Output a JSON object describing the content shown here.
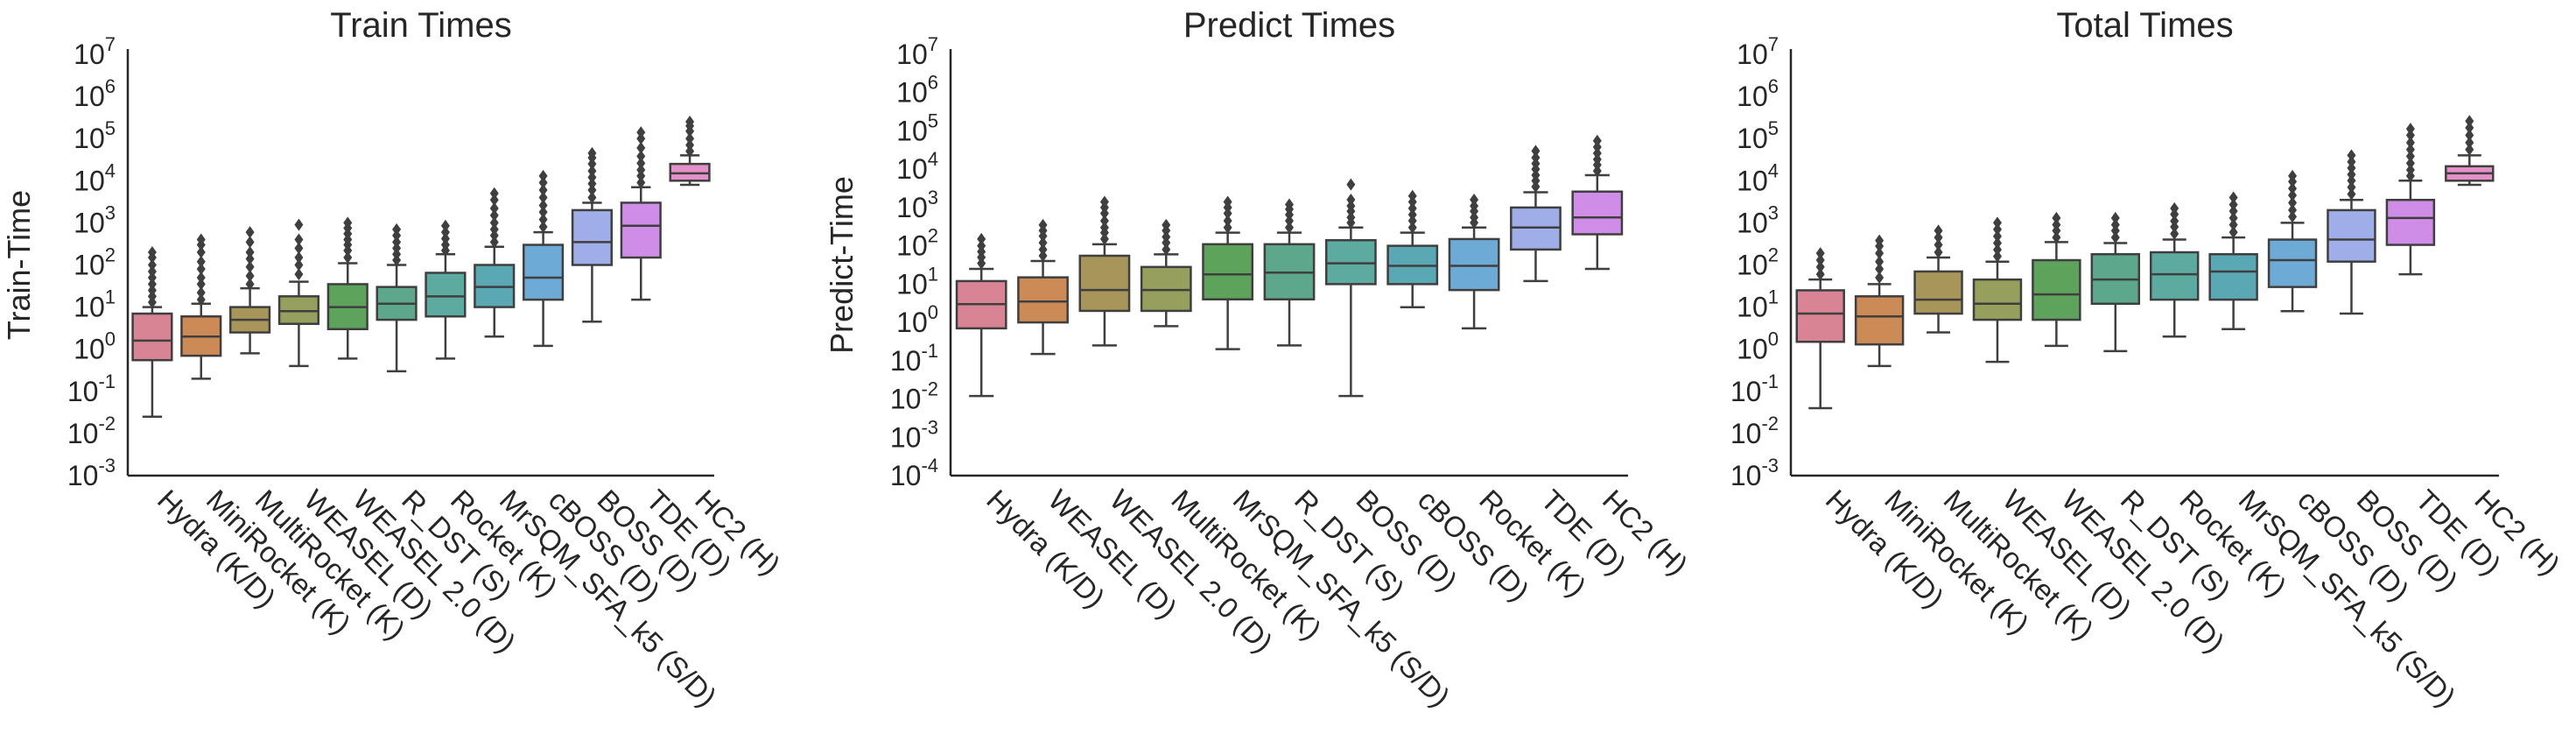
{
  "palette": [
    "#d98494",
    "#cc8a56",
    "#a8955a",
    "#96a05c",
    "#5ea35c",
    "#5da88c",
    "#5daaa0",
    "#5aa8b4",
    "#6daad6",
    "#9faee8",
    "#d08de8",
    "#e590c8"
  ],
  "chart_data": [
    {
      "type": "box",
      "title": "Train Times",
      "ylabel": "Train-Time",
      "yscale": "log",
      "ylim_exp": [
        -3,
        7
      ],
      "yticks": [
        {
          "base": "10",
          "exp": "-3"
        },
        {
          "base": "10",
          "exp": "-2"
        },
        {
          "base": "10",
          "exp": "-1"
        },
        {
          "base": "10",
          "exp": "0"
        },
        {
          "base": "10",
          "exp": "1"
        },
        {
          "base": "10",
          "exp": "2"
        },
        {
          "base": "10",
          "exp": "3"
        },
        {
          "base": "10",
          "exp": "4"
        },
        {
          "base": "10",
          "exp": "5"
        },
        {
          "base": "10",
          "exp": "6"
        },
        {
          "base": "10",
          "exp": "7"
        }
      ],
      "categories": [
        "Hydra (K/D)",
        "MiniRocket (K)",
        "MultiRocket (K)",
        "WEASEL (D)",
        "WEASEL 2.0 (D)",
        "R_DST (S)",
        "Rocket (K)",
        "MrSQM_SFA_k5 (S/D)",
        "cBOSS (D)",
        "BOSS (D)",
        "TDE (D)",
        "HC2 (H)"
      ],
      "boxes": [
        {
          "whislo": 0.025,
          "q1": 0.55,
          "med": 1.6,
          "q3": 7,
          "whishi": 10,
          "fliers": [
            13,
            18,
            25,
            35,
            50,
            70,
            100,
            150,
            200
          ]
        },
        {
          "whislo": 0.2,
          "q1": 0.7,
          "med": 2,
          "q3": 6,
          "whishi": 12,
          "fliers": [
            15,
            22,
            35,
            50,
            80,
            120,
            200,
            300,
            400
          ]
        },
        {
          "whislo": 0.8,
          "q1": 2.5,
          "med": 5,
          "q3": 10,
          "whishi": 28,
          "fliers": [
            35,
            55,
            90,
            140,
            200,
            350,
            600
          ]
        },
        {
          "whislo": 0.4,
          "q1": 4,
          "med": 8,
          "q3": 18,
          "whishi": 40,
          "fliers": [
            60,
            100,
            150,
            250,
            400,
            900
          ]
        },
        {
          "whislo": 0.6,
          "q1": 3,
          "med": 10,
          "q3": 35,
          "whishi": 110,
          "fliers": [
            150,
            220,
            300,
            400,
            550,
            750,
            1000
          ]
        },
        {
          "whislo": 0.3,
          "q1": 5,
          "med": 12,
          "q3": 30,
          "whishi": 100,
          "fliers": [
            130,
            180,
            250,
            350,
            500,
            700
          ]
        },
        {
          "whislo": 0.6,
          "q1": 6,
          "med": 18,
          "q3": 65,
          "whishi": 180,
          "fliers": [
            220,
            300,
            420,
            600,
            850
          ]
        },
        {
          "whislo": 2,
          "q1": 10,
          "med": 30,
          "q3": 100,
          "whishi": 270,
          "fliers": [
            350,
            500,
            700,
            1000,
            1500,
            2200,
            3500,
            5000
          ]
        },
        {
          "whislo": 1.2,
          "q1": 15,
          "med": 50,
          "q3": 300,
          "whishi": 600,
          "fliers": [
            800,
            1200,
            1800,
            2600,
            4000,
            6000,
            9000,
            13000
          ]
        },
        {
          "whislo": 4.5,
          "q1": 100,
          "med": 350,
          "q3": 2000,
          "whishi": 3000,
          "fliers": [
            4000,
            6000,
            8500,
            12000,
            17000,
            25000,
            35000,
            45000
          ]
        },
        {
          "whislo": 15,
          "q1": 150,
          "med": 850,
          "q3": 3000,
          "whishi": 7000,
          "fliers": [
            9000,
            13000,
            18000,
            26000,
            38000,
            60000,
            100000,
            140000
          ]
        },
        {
          "whislo": 8000,
          "q1": 10000,
          "med": 15000,
          "q3": 25000,
          "whishi": 40000,
          "fliers": [
            50000,
            70000,
            100000,
            150000,
            200000,
            250000
          ]
        }
      ]
    },
    {
      "type": "box",
      "title": "Predict Times",
      "ylabel": "Predict-Time",
      "yscale": "log",
      "ylim_exp": [
        -4,
        7
      ],
      "yticks": [
        {
          "base": "10",
          "exp": "-4"
        },
        {
          "base": "10",
          "exp": "-3"
        },
        {
          "base": "10",
          "exp": "-2"
        },
        {
          "base": "10",
          "exp": "-1"
        },
        {
          "base": "10",
          "exp": "0"
        },
        {
          "base": "10",
          "exp": "1"
        },
        {
          "base": "10",
          "exp": "2"
        },
        {
          "base": "10",
          "exp": "3"
        },
        {
          "base": "10",
          "exp": "4"
        },
        {
          "base": "10",
          "exp": "5"
        },
        {
          "base": "10",
          "exp": "6"
        },
        {
          "base": "10",
          "exp": "7"
        }
      ],
      "categories": [
        "Hydra (K/D)",
        "WEASEL (D)",
        "WEASEL 2.0 (D)",
        "MultiRocket (K)",
        "MrSQM_SFA_k5 (S/D)",
        "R_DST (S)",
        "BOSS (D)",
        "cBOSS (D)",
        "Rocket (K)",
        "TDE (D)",
        "HC2 (H)"
      ],
      "boxes": [
        {
          "whislo": 0.012,
          "q1": 0.7,
          "med": 3,
          "q3": 12,
          "whishi": 25,
          "fliers": [
            35,
            50,
            70,
            100,
            150
          ]
        },
        {
          "whislo": 0.15,
          "q1": 1,
          "med": 3.5,
          "q3": 15,
          "whishi": 40,
          "fliers": [
            55,
            80,
            120,
            180,
            250,
            350
          ]
        },
        {
          "whislo": 0.25,
          "q1": 2,
          "med": 7,
          "q3": 55,
          "whishi": 110,
          "fliers": [
            150,
            220,
            300,
            450,
            700,
            1000,
            1400
          ]
        },
        {
          "whislo": 0.8,
          "q1": 2,
          "med": 7,
          "q3": 28,
          "whishi": 60,
          "fliers": [
            80,
            120,
            170,
            250,
            350
          ]
        },
        {
          "whislo": 0.2,
          "q1": 4,
          "med": 18,
          "q3": 110,
          "whishi": 220,
          "fliers": [
            300,
            450,
            700,
            1000,
            1400
          ]
        },
        {
          "whislo": 0.25,
          "q1": 4,
          "med": 20,
          "q3": 110,
          "whishi": 220,
          "fliers": [
            300,
            450,
            650,
            900,
            1200
          ]
        },
        {
          "whislo": 0.012,
          "q1": 10,
          "med": 35,
          "q3": 140,
          "whishi": 300,
          "fliers": [
            400,
            550,
            800,
            1100,
            1600,
            4000
          ]
        },
        {
          "whislo": 2.5,
          "q1": 10,
          "med": 30,
          "q3": 100,
          "whishi": 220,
          "fliers": [
            300,
            450,
            650,
            950,
            1400,
            2000
          ]
        },
        {
          "whislo": 0.7,
          "q1": 7,
          "med": 30,
          "q3": 150,
          "whishi": 300,
          "fliers": [
            400,
            550,
            800,
            1100,
            1600
          ]
        },
        {
          "whislo": 12,
          "q1": 80,
          "med": 300,
          "q3": 1000,
          "whishi": 2500,
          "fliers": [
            3500,
            5000,
            7000,
            10000,
            14000,
            20000,
            30000
          ]
        },
        {
          "whislo": 25,
          "q1": 200,
          "med": 550,
          "q3": 2600,
          "whishi": 7000,
          "fliers": [
            9000,
            13000,
            18000,
            26000,
            38000,
            55000
          ]
        }
      ]
    },
    {
      "type": "box",
      "title": "Total Times",
      "ylabel": "",
      "yscale": "log",
      "ylim_exp": [
        -3,
        7
      ],
      "yticks": [
        {
          "base": "10",
          "exp": "-3"
        },
        {
          "base": "10",
          "exp": "-2"
        },
        {
          "base": "10",
          "exp": "-1"
        },
        {
          "base": "10",
          "exp": "0"
        },
        {
          "base": "10",
          "exp": "1"
        },
        {
          "base": "10",
          "exp": "2"
        },
        {
          "base": "10",
          "exp": "3"
        },
        {
          "base": "10",
          "exp": "4"
        },
        {
          "base": "10",
          "exp": "5"
        },
        {
          "base": "10",
          "exp": "6"
        },
        {
          "base": "10",
          "exp": "7"
        }
      ],
      "categories": [
        "Hydra (K/D)",
        "MiniRocket (K)",
        "MultiRocket (K)",
        "WEASEL (D)",
        "WEASEL 2.0 (D)",
        "R_DST (S)",
        "Rocket (K)",
        "MrSQM_SFA_k5 (S/D)",
        "cBOSS (D)",
        "BOSS (D)",
        "TDE (D)",
        "HC2 (H)"
      ],
      "boxes": [
        {
          "whislo": 0.04,
          "q1": 1.5,
          "med": 7,
          "q3": 25,
          "whishi": 45,
          "fliers": [
            60,
            90,
            130,
            190
          ]
        },
        {
          "whislo": 0.4,
          "q1": 1.3,
          "med": 6,
          "q3": 18,
          "whishi": 35,
          "fliers": [
            50,
            80,
            120,
            190,
            280,
            380
          ]
        },
        {
          "whislo": 2.5,
          "q1": 7,
          "med": 15,
          "q3": 70,
          "whishi": 150,
          "fliers": [
            200,
            300,
            450,
            650
          ]
        },
        {
          "whislo": 0.5,
          "q1": 5,
          "med": 12,
          "q3": 45,
          "whishi": 120,
          "fliers": [
            160,
            230,
            330,
            480,
            700,
            1000
          ]
        },
        {
          "whislo": 1.2,
          "q1": 5,
          "med": 20,
          "q3": 130,
          "whishi": 350,
          "fliers": [
            450,
            650,
            900,
            1300
          ]
        },
        {
          "whislo": 0.9,
          "q1": 12,
          "med": 45,
          "q3": 180,
          "whishi": 330,
          "fliers": [
            450,
            650,
            900,
            1300
          ]
        },
        {
          "whislo": 2,
          "q1": 15,
          "med": 60,
          "q3": 200,
          "whishi": 400,
          "fliers": [
            550,
            800,
            1100,
            1600,
            2200
          ]
        },
        {
          "whislo": 3,
          "q1": 15,
          "med": 70,
          "q3": 180,
          "whishi": 450,
          "fliers": [
            600,
            900,
            1300,
            1900,
            2700,
            4000
          ]
        },
        {
          "whislo": 8,
          "q1": 30,
          "med": 130,
          "q3": 400,
          "whishi": 1000,
          "fliers": [
            1400,
            2000,
            3000,
            4500,
            6500,
            9500,
            13000
          ]
        },
        {
          "whislo": 7,
          "q1": 120,
          "med": 400,
          "q3": 2000,
          "whishi": 3500,
          "fliers": [
            4800,
            7000,
            10000,
            14000,
            20000,
            28000,
            40000
          ]
        },
        {
          "whislo": 60,
          "q1": 300,
          "med": 1300,
          "q3": 3500,
          "whishi": 10000,
          "fliers": [
            13000,
            18000,
            26000,
            38000,
            55000,
            80000,
            120000,
            170000
          ]
        },
        {
          "whislo": 8000,
          "q1": 10000,
          "med": 15000,
          "q3": 22000,
          "whishi": 40000,
          "fliers": [
            55000,
            80000,
            120000,
            180000,
            260000
          ]
        }
      ]
    }
  ]
}
